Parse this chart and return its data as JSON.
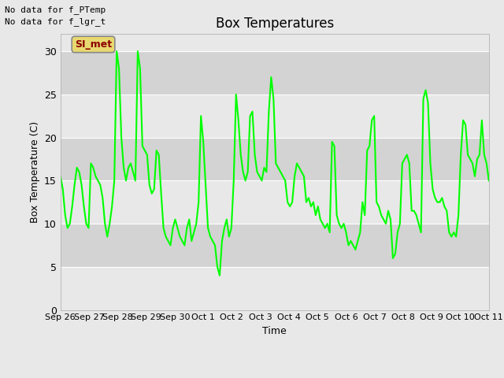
{
  "title": "Box Temperatures",
  "xlabel": "Time",
  "ylabel": "Box Temperature (C)",
  "ylim": [
    0,
    32
  ],
  "yticks": [
    0,
    5,
    10,
    15,
    20,
    25,
    30
  ],
  "fig_bg_color": "#e8e8e8",
  "plot_bg_color": "#dcdcdc",
  "band_color_light": "#e8e8e8",
  "band_color_dark": "#cccccc",
  "line_color": "#00ff00",
  "line_width": 1.5,
  "annotation_text": "SI_met",
  "nodata_lines": [
    "No data for f_PTemp",
    "No data for f_lgr_t"
  ],
  "x_tick_labels": [
    "Sep 26",
    "Sep 27",
    "Sep 28",
    "Sep 29",
    "Sep 30",
    "Oct 1",
    "Oct 2",
    "Oct 3",
    "Oct 4",
    "Oct 5",
    "Oct 6",
    "Oct 7",
    "Oct 8",
    "Oct 9",
    "Oct 10",
    "Oct 11"
  ],
  "x_tick_positions": [
    0,
    1,
    2,
    3,
    4,
    5,
    6,
    7,
    8,
    9,
    10,
    11,
    12,
    13,
    14,
    15
  ],
  "time_series": [
    15.5,
    14.0,
    11.0,
    9.5,
    10.0,
    12.0,
    14.5,
    16.5,
    16.0,
    14.5,
    12.0,
    10.0,
    9.5,
    17.0,
    16.5,
    15.5,
    15.0,
    14.5,
    13.0,
    10.0,
    8.5,
    10.0,
    12.0,
    15.0,
    30.0,
    28.0,
    20.0,
    16.5,
    15.0,
    16.5,
    17.0,
    16.0,
    15.0,
    30.0,
    28.0,
    19.0,
    18.5,
    18.0,
    14.5,
    13.5,
    14.0,
    18.5,
    18.0,
    13.5,
    9.5,
    8.5,
    8.0,
    7.5,
    9.5,
    10.5,
    9.5,
    8.5,
    8.0,
    7.5,
    9.5,
    10.5,
    8.0,
    9.0,
    10.0,
    12.5,
    22.5,
    19.5,
    14.5,
    9.5,
    8.5,
    8.0,
    7.5,
    5.0,
    4.0,
    8.0,
    9.5,
    10.5,
    8.5,
    9.5,
    15.0,
    25.0,
    22.0,
    18.0,
    16.0,
    15.0,
    16.0,
    22.5,
    23.0,
    18.0,
    16.0,
    15.5,
    15.0,
    16.5,
    16.0,
    23.0,
    27.0,
    24.5,
    17.0,
    16.5,
    16.0,
    15.5,
    15.0,
    12.5,
    12.0,
    12.5,
    15.5,
    17.0,
    16.5,
    16.0,
    15.5,
    12.5,
    13.0,
    12.0,
    12.5,
    11.0,
    12.0,
    10.5,
    10.0,
    9.5,
    10.0,
    9.0,
    19.5,
    19.0,
    11.0,
    10.0,
    9.5,
    10.0,
    9.0,
    7.5,
    8.0,
    7.5,
    7.0,
    8.0,
    9.0,
    12.5,
    11.0,
    18.5,
    19.0,
    22.0,
    22.5,
    12.5,
    12.0,
    11.0,
    10.5,
    10.0,
    11.5,
    10.5,
    6.0,
    6.5,
    9.0,
    10.0,
    17.0,
    17.5,
    18.0,
    17.0,
    11.5,
    11.5,
    11.0,
    10.0,
    9.0,
    24.5,
    25.5,
    24.0,
    17.0,
    14.0,
    13.0,
    12.5,
    12.5,
    13.0,
    12.0,
    11.5,
    9.0,
    8.5,
    9.0,
    8.5,
    11.0,
    18.0,
    22.0,
    21.5,
    18.0,
    17.5,
    17.0,
    15.5,
    17.5,
    18.0,
    22.0,
    18.0,
    17.0,
    15.0
  ]
}
